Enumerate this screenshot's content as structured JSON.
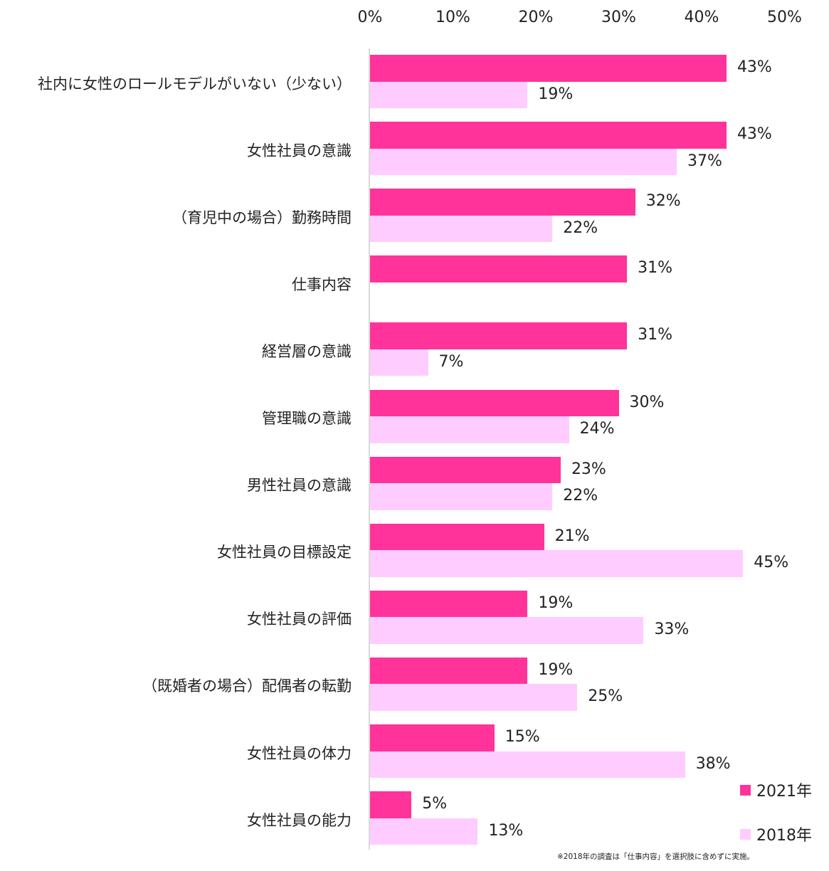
{
  "chart_data": {
    "type": "bar",
    "orientation": "horizontal",
    "title": "",
    "xlabel": "",
    "ylabel": "",
    "xlim": [
      0,
      50
    ],
    "x_ticks": [
      "0%",
      "10%",
      "20%",
      "30%",
      "40%",
      "50%"
    ],
    "tick_axis_position": "top",
    "grid": false,
    "legend_position": "bottom-right",
    "categories": [
      "社内に女性のロールモデルがいない（少ない）",
      "女性社員の意識",
      "（育児中の場合）勤務時間",
      "仕事内容",
      "経営層の意識",
      "管理職の意識",
      "男性社員の意識",
      "女性社員の目標設定",
      "女性社員の評価",
      "（既婚者の場合）配偶者の転勤",
      "女性社員の体力",
      "女性社員の能力"
    ],
    "series": [
      {
        "name": "2021年",
        "color": "#FF3399",
        "values": [
          43,
          43,
          32,
          31,
          31,
          30,
          23,
          21,
          19,
          19,
          15,
          5
        ]
      },
      {
        "name": "2018年",
        "color": "#FFCCFF",
        "values": [
          19,
          37,
          22,
          null,
          7,
          24,
          22,
          45,
          33,
          25,
          38,
          13
        ]
      }
    ],
    "value_labels": {
      "2021年": [
        "43%",
        "43%",
        "32%",
        "31%",
        "31%",
        "30%",
        "23%",
        "21%",
        "19%",
        "19%",
        "15%",
        "5%"
      ],
      "2018年": [
        "19%",
        "37%",
        "22%",
        "",
        "7%",
        "24%",
        "22%",
        "45%",
        "33%",
        "25%",
        "38%",
        "13%"
      ]
    },
    "legend": [
      "2021年",
      "2018年"
    ],
    "footnote": "※2018年の調査は「仕事内容」を選択肢に含めずに実施。"
  }
}
